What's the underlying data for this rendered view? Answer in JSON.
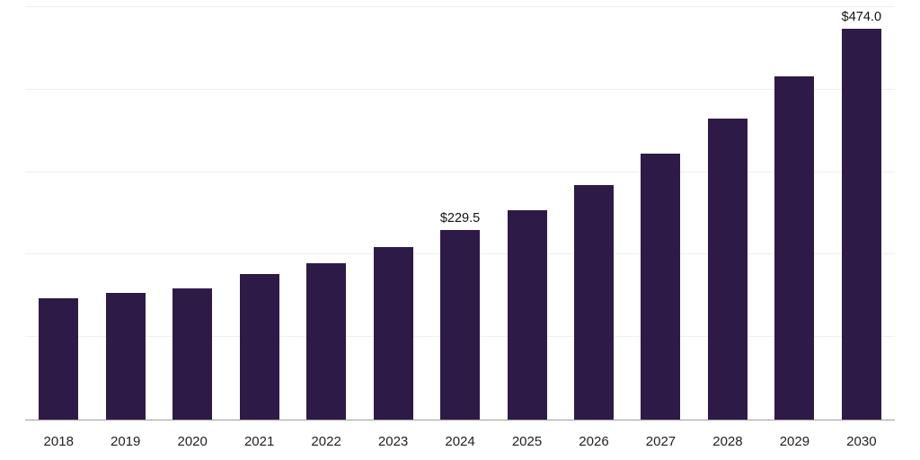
{
  "chart_data": {
    "type": "bar",
    "title": "",
    "xlabel": "",
    "ylabel": "",
    "categories": [
      "2018",
      "2019",
      "2020",
      "2021",
      "2022",
      "2023",
      "2024",
      "2025",
      "2026",
      "2027",
      "2028",
      "2029",
      "2030"
    ],
    "values": [
      147,
      154,
      159,
      177,
      190,
      209,
      229.5,
      254,
      284,
      322,
      365,
      416,
      474
    ],
    "data_labels": [
      {
        "index": 6,
        "text": "$229.5"
      },
      {
        "index": 12,
        "text": "$474.0"
      }
    ],
    "ylim": [
      0,
      500
    ],
    "grid": "horizontal",
    "gridline_values": [
      100,
      200,
      300,
      400,
      500
    ],
    "legend": "none",
    "bar_color": "#2E1A47",
    "axis_color": "#9e9e9e",
    "gridline_color": "#efefef",
    "background": "#ffffff"
  }
}
